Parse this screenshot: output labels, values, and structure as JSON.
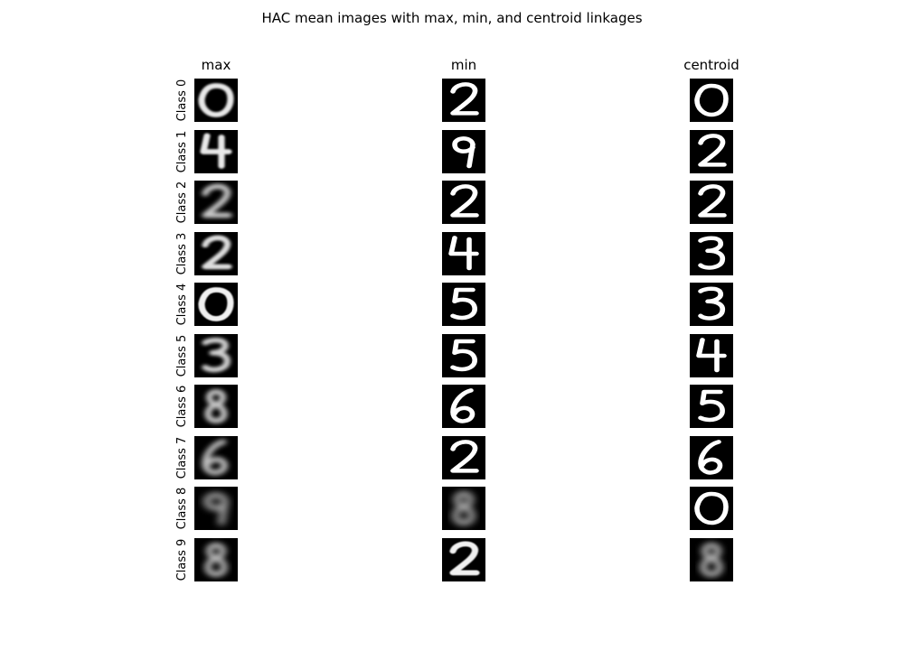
{
  "figure": {
    "title": "HAC mean images with max, min, and centroid linkages"
  },
  "chart_data": {
    "type": "image-grid",
    "title": "HAC mean images with max, min, and centroid linkages",
    "columns": [
      "max",
      "min",
      "centroid"
    ],
    "rows": [
      "Class 0",
      "Class 1",
      "Class 2",
      "Class 3",
      "Class 4",
      "Class 5",
      "Class 6",
      "Class 7",
      "Class 8",
      "Class 9"
    ],
    "cells": [
      [
        {
          "digit": "0",
          "blur": 0.6
        },
        {
          "digit": "2",
          "blur": 0
        },
        {
          "digit": "0",
          "blur": 0
        }
      ],
      [
        {
          "digit": "4",
          "blur": 0.6
        },
        {
          "digit": "9",
          "blur": 0
        },
        {
          "digit": "2",
          "blur": 0
        }
      ],
      [
        {
          "digit": "2",
          "blur": 1.4
        },
        {
          "digit": "2",
          "blur": 0
        },
        {
          "digit": "2",
          "blur": 0
        }
      ],
      [
        {
          "digit": "2",
          "blur": 0.9
        },
        {
          "digit": "4",
          "blur": 0
        },
        {
          "digit": "3",
          "blur": 0
        }
      ],
      [
        {
          "digit": "0",
          "blur": 0.4
        },
        {
          "digit": "5",
          "blur": 0
        },
        {
          "digit": "3",
          "blur": 0
        }
      ],
      [
        {
          "digit": "3",
          "blur": 1.2
        },
        {
          "digit": "5",
          "blur": 0
        },
        {
          "digit": "4",
          "blur": 0
        }
      ],
      [
        {
          "digit": "8",
          "blur": 1.5
        },
        {
          "digit": "6",
          "blur": 0
        },
        {
          "digit": "5",
          "blur": 0
        }
      ],
      [
        {
          "digit": "6",
          "blur": 1.6
        },
        {
          "digit": "2",
          "blur": 0
        },
        {
          "digit": "6",
          "blur": 0
        }
      ],
      [
        {
          "digit": "9",
          "blur": 2.2
        },
        {
          "digit": "8",
          "blur": 2.2
        },
        {
          "digit": "0",
          "blur": 0
        }
      ],
      [
        {
          "digit": "8",
          "blur": 1.8
        },
        {
          "digit": "2",
          "blur": 0.4
        },
        {
          "digit": "8",
          "blur": 2.0
        }
      ]
    ],
    "grid": false,
    "colormap": "gray",
    "colors": {
      "background": "#000000",
      "stroke": "#ffffff"
    }
  }
}
